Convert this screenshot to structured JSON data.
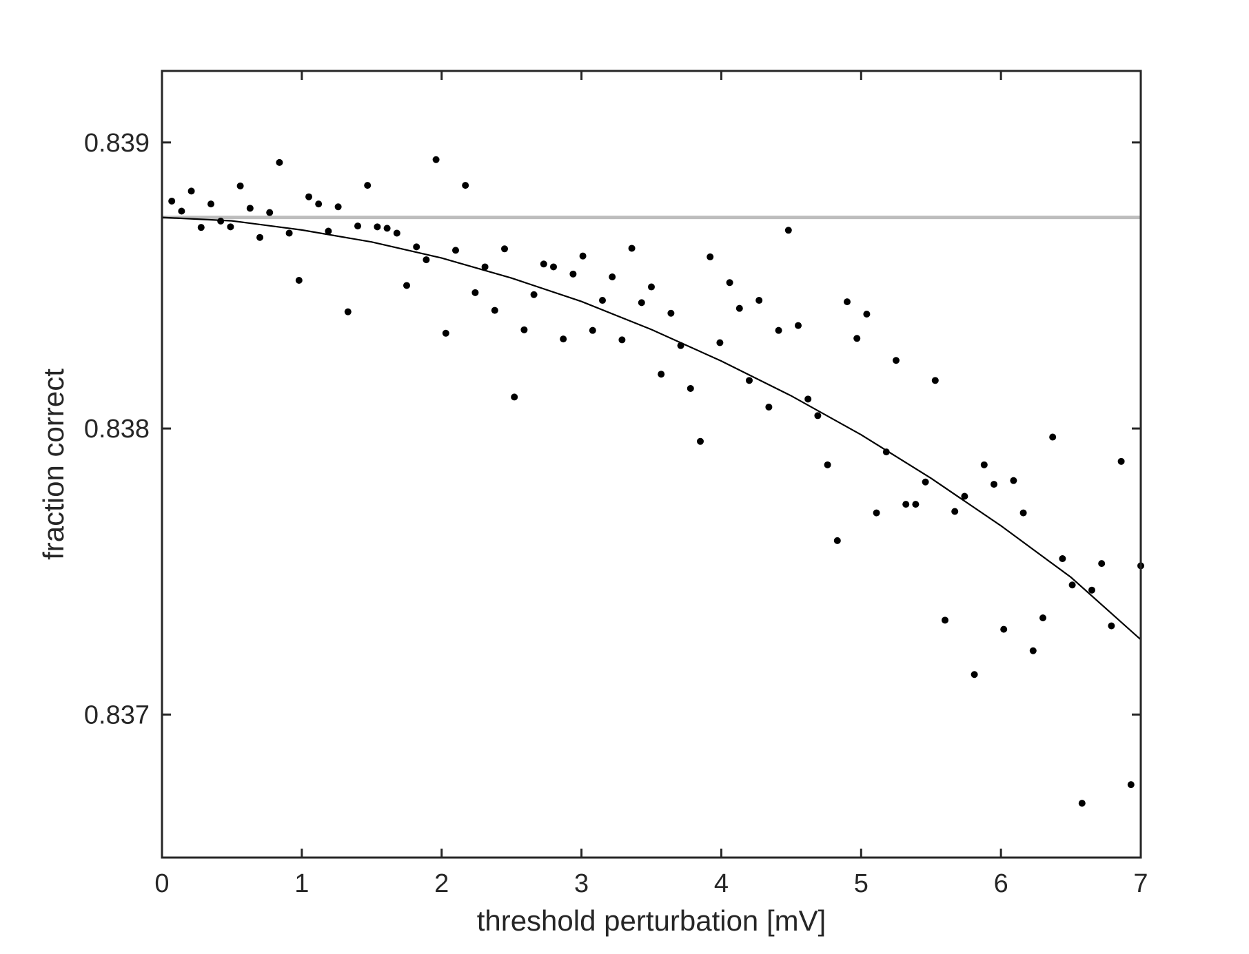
{
  "chart_data": {
    "type": "scatter",
    "title": "",
    "xlabel": "threshold perturbation [mV]",
    "ylabel": "fraction correct",
    "xlim": [
      0,
      7
    ],
    "ylim": [
      0.8365,
      0.83925
    ],
    "xticks": [
      0,
      1,
      2,
      3,
      4,
      5,
      6,
      7
    ],
    "xtick_labels": [
      "0",
      "1",
      "2",
      "3",
      "4",
      "5",
      "6",
      "7"
    ],
    "yticks": [
      0.837,
      0.838,
      0.839
    ],
    "ytick_labels": [
      "0.837",
      "0.838",
      "0.839"
    ],
    "grid": false,
    "legend": "none",
    "colors": {
      "points": "#000000",
      "fit": "#000000",
      "baseline": "#bdbdbd",
      "axes": "#262626"
    },
    "baseline": {
      "y": 0.838738
    },
    "fit": {
      "x": [
        0,
        0.5,
        1,
        1.5,
        2,
        2.5,
        3,
        3.5,
        4,
        4.5,
        5,
        5.5,
        6,
        6.5,
        7
      ],
      "y": [
        0.838738,
        0.838726,
        0.838694,
        0.838652,
        0.838596,
        0.838526,
        0.838444,
        0.838346,
        0.838236,
        0.838114,
        0.837978,
        0.837826,
        0.83766,
        0.83748,
        0.837262
      ]
    },
    "series": [
      {
        "x": [
          0.07,
          0.14,
          0.21,
          0.28,
          0.35,
          0.42,
          0.49,
          0.56,
          0.63,
          0.7,
          0.77,
          0.84,
          0.91,
          0.98,
          1.05,
          1.12,
          1.19,
          1.26,
          1.33,
          1.4,
          1.47,
          1.54,
          1.61,
          1.68,
          1.75,
          1.82,
          1.89,
          1.96,
          2.03,
          2.1,
          2.17,
          2.24,
          2.31,
          2.38,
          2.45,
          2.52,
          2.59,
          2.66,
          2.73,
          2.8,
          2.87,
          2.94,
          3.01,
          3.08,
          3.15,
          3.22,
          3.29,
          3.36,
          3.43,
          3.5,
          3.57,
          3.64,
          3.71,
          3.78,
          3.85,
          3.92,
          3.99,
          4.06,
          4.13,
          4.2,
          4.27,
          4.34,
          4.41,
          4.48,
          4.55,
          4.62,
          4.69,
          4.76,
          4.83,
          4.9,
          4.97,
          5.04,
          5.11,
          5.18,
          5.25,
          5.32,
          5.39,
          5.46,
          5.53,
          5.6,
          5.67,
          5.74,
          5.81,
          5.88,
          5.95,
          6.02,
          6.09,
          6.16,
          6.23,
          6.3,
          6.37,
          6.44,
          6.51,
          6.58,
          6.65,
          6.72,
          6.79,
          6.86,
          6.93,
          7.0
        ],
        "y": [
          0.838795,
          0.83876,
          0.83883,
          0.838703,
          0.838785,
          0.838725,
          0.838705,
          0.838848,
          0.83877,
          0.838668,
          0.838755,
          0.83893,
          0.838683,
          0.838518,
          0.83881,
          0.838785,
          0.83869,
          0.838775,
          0.838408,
          0.838708,
          0.83885,
          0.838705,
          0.8387,
          0.838683,
          0.8385,
          0.838635,
          0.83859,
          0.83894,
          0.838333,
          0.838623,
          0.83885,
          0.838475,
          0.838565,
          0.838413,
          0.838628,
          0.83811,
          0.838345,
          0.838468,
          0.838575,
          0.838565,
          0.838313,
          0.83854,
          0.838603,
          0.838343,
          0.838448,
          0.83853,
          0.83831,
          0.83863,
          0.83844,
          0.838495,
          0.83819,
          0.838403,
          0.83829,
          0.83814,
          0.837955,
          0.8386,
          0.8383,
          0.83851,
          0.83842,
          0.838168,
          0.838448,
          0.838075,
          0.838343,
          0.838693,
          0.83836,
          0.838103,
          0.838045,
          0.837873,
          0.837608,
          0.838443,
          0.838315,
          0.8384,
          0.837705,
          0.837918,
          0.838238,
          0.837735,
          0.837735,
          0.837813,
          0.838168,
          0.83733,
          0.83771,
          0.837763,
          0.83714,
          0.837873,
          0.837805,
          0.837298,
          0.837818,
          0.837705,
          0.837223,
          0.837338,
          0.83797,
          0.837545,
          0.837453,
          0.83669,
          0.837435,
          0.837528,
          0.83731,
          0.837885,
          0.836755,
          0.83752
        ]
      }
    ]
  }
}
